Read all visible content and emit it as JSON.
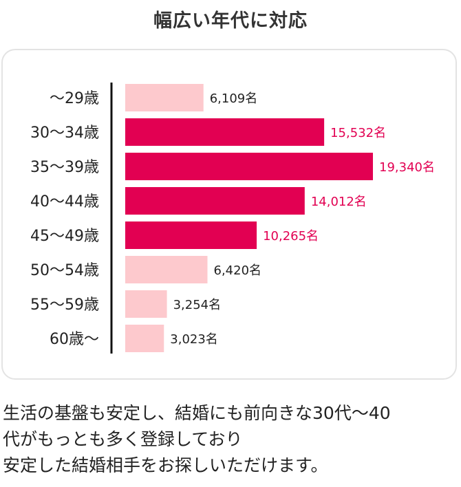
{
  "title": "幅広い年代に対応",
  "colors": {
    "highlight": "#e20052",
    "normal": "#fdc9cd",
    "axis": "#111111"
  },
  "chart_data": {
    "type": "bar",
    "orientation": "horizontal",
    "categories": [
      "～29歳",
      "30～34歳",
      "35～39歳",
      "40～44歳",
      "45～49歳",
      "50～54歳",
      "55～59歳",
      "60歳～"
    ],
    "values": [
      6109,
      15532,
      19340,
      14012,
      10265,
      6420,
      3254,
      3023
    ],
    "value_labels": [
      "6,109名",
      "15,532名",
      "19,340名",
      "14,012名",
      "10,265名",
      "6,420名",
      "3,254名",
      "3,023名"
    ],
    "highlighted": [
      false,
      true,
      true,
      true,
      true,
      false,
      false,
      false
    ],
    "xlim": [
      0,
      20000
    ],
    "grid": false
  },
  "description": [
    "生活の基盤も安定し、結婚にも前向きな30代～40",
    "代がもっとも多く登録しており",
    "安定した結婚相手をお探しいただけます。"
  ]
}
